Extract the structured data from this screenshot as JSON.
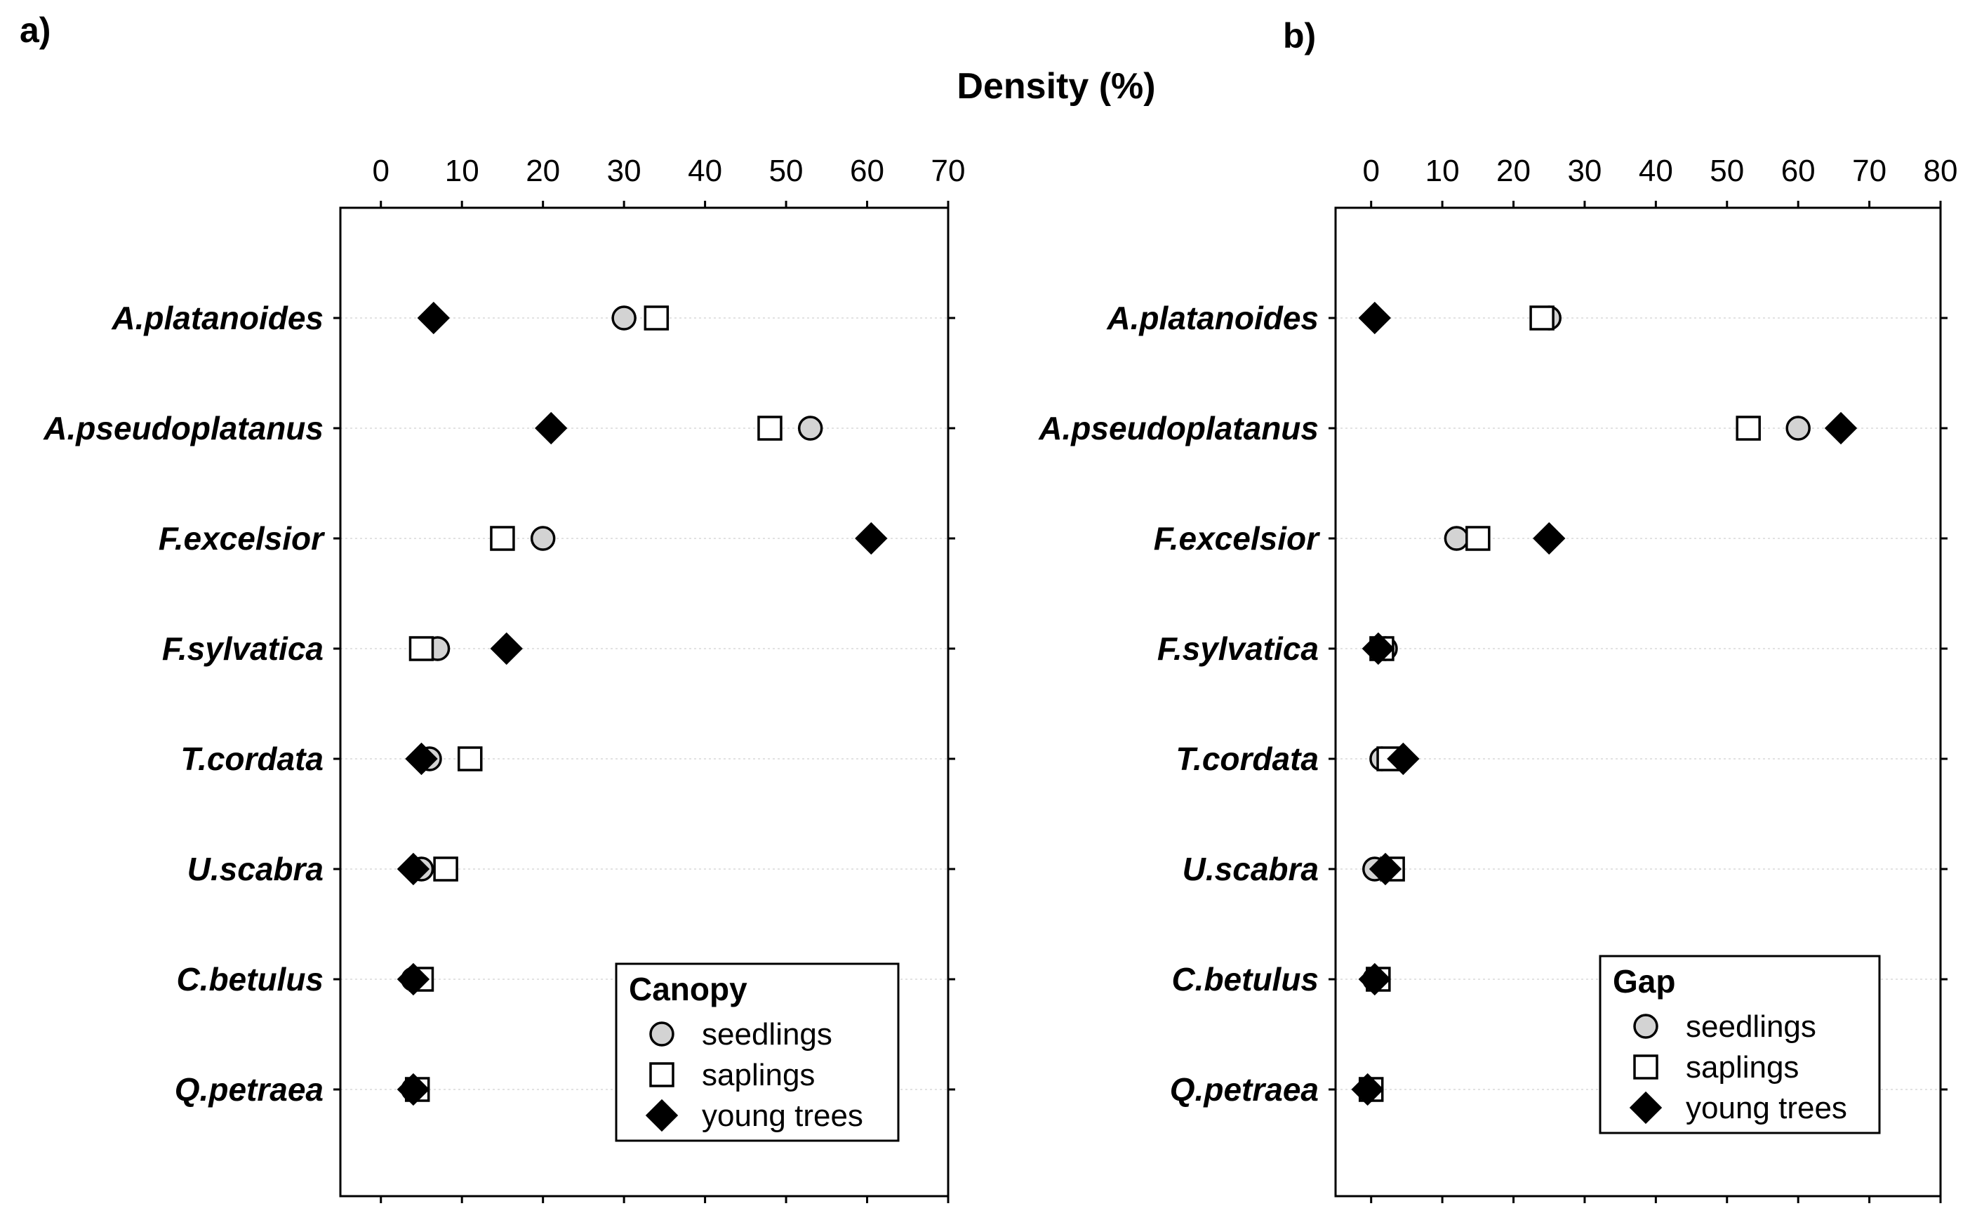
{
  "figure": {
    "axis_title": "Density (%)"
  },
  "chart_data": [
    {
      "type": "scatter",
      "panel_label": "a)",
      "legend_title": "Canopy",
      "xlim": [
        -5,
        70
      ],
      "xticks": [
        0,
        10,
        20,
        30,
        40,
        50,
        60,
        70
      ],
      "categories": [
        "A.platanoides",
        "A.pseudoplatanus",
        "F.excelsior",
        "F.sylvatica",
        "T.cordata",
        "U.scabra",
        "C.betulus",
        "Q.petraea"
      ],
      "series": [
        {
          "name": "seedlings",
          "marker": "circle",
          "color": "#d3d3d3",
          "values": [
            30,
            53,
            20,
            7,
            6,
            5,
            4,
            4
          ]
        },
        {
          "name": "saplings",
          "marker": "square",
          "color": "#ffffff",
          "values": [
            34,
            48,
            15,
            5,
            11,
            8,
            5,
            4.5
          ]
        },
        {
          "name": "young trees",
          "marker": "diamond",
          "color": "#000000",
          "values": [
            6.5,
            21,
            60.5,
            15.5,
            5,
            4,
            4,
            4
          ]
        }
      ]
    },
    {
      "type": "scatter",
      "panel_label": "b)",
      "legend_title": "Gap",
      "xlim": [
        -5,
        80
      ],
      "xticks": [
        0,
        10,
        20,
        30,
        40,
        50,
        60,
        70,
        80
      ],
      "categories": [
        "A.platanoides",
        "A.pseudoplatanus",
        "F.excelsior",
        "F.sylvatica",
        "T.cordata",
        "U.scabra",
        "C.betulus",
        "Q.petraea"
      ],
      "series": [
        {
          "name": "seedlings",
          "marker": "circle",
          "color": "#d3d3d3",
          "values": [
            25,
            60,
            12,
            2,
            1.5,
            0.5,
            0.5,
            0
          ]
        },
        {
          "name": "saplings",
          "marker": "square",
          "color": "#ffffff",
          "values": [
            24,
            53,
            15,
            1.5,
            2.5,
            3,
            1,
            0
          ]
        },
        {
          "name": "young trees",
          "marker": "diamond",
          "color": "#000000",
          "values": [
            0.5,
            66,
            25,
            1,
            4.5,
            2,
            0.5,
            -0.5
          ]
        }
      ]
    }
  ]
}
